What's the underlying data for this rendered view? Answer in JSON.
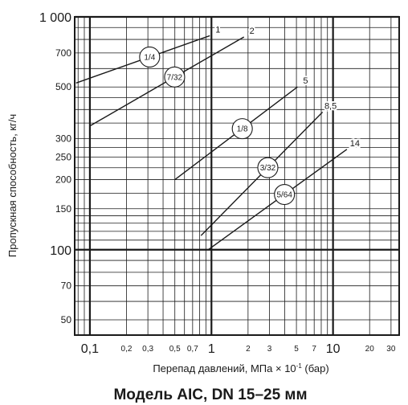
{
  "chart_data": {
    "type": "line",
    "title": "Модель AIC, DN 15–25 мм",
    "xlabel": "Перепад давлений, МПа × 10",
    "xlabel_sup": "-1",
    "xlabel_suffix": " (бар)",
    "ylabel": "Пропускная способность, кг/ч",
    "x_scale": "log",
    "y_scale": "log",
    "xlim": [
      0.075,
      35
    ],
    "ylim": [
      43,
      1000
    ],
    "x_ticks": [
      {
        "value": 0.1,
        "label": "0,1",
        "major": true
      },
      {
        "value": 0.2,
        "label": "0,2",
        "major": false
      },
      {
        "value": 0.3,
        "label": "0,3",
        "major": false
      },
      {
        "value": 0.5,
        "label": "0,5",
        "major": false
      },
      {
        "value": 0.7,
        "label": "0,7",
        "major": false
      },
      {
        "value": 1,
        "label": "1",
        "major": true
      },
      {
        "value": 2,
        "label": "2",
        "major": false
      },
      {
        "value": 3,
        "label": "3",
        "major": false
      },
      {
        "value": 5,
        "label": "5",
        "major": false
      },
      {
        "value": 7,
        "label": "7",
        "major": false
      },
      {
        "value": 10,
        "label": "10",
        "major": true
      },
      {
        "value": 20,
        "label": "20",
        "major": false
      },
      {
        "value": 30,
        "label": "30",
        "major": false
      }
    ],
    "y_ticks": [
      {
        "value": 1000,
        "label": "1 000",
        "major": true
      },
      {
        "value": 700,
        "label": "700",
        "major": false
      },
      {
        "value": 500,
        "label": "500",
        "major": false
      },
      {
        "value": 300,
        "label": "300",
        "major": false
      },
      {
        "value": 250,
        "label": "250",
        "major": false
      },
      {
        "value": 200,
        "label": "200",
        "major": false
      },
      {
        "value": 150,
        "label": "150",
        "major": false
      },
      {
        "value": 100,
        "label": "100",
        "major": true
      },
      {
        "value": 70,
        "label": "70",
        "major": false
      },
      {
        "value": 50,
        "label": "50",
        "major": false
      }
    ],
    "series": [
      {
        "name": "1",
        "orifice": "1/4",
        "x": [
          0.077,
          0.97
        ],
        "y": [
          520,
          830
        ]
      },
      {
        "name": "2",
        "orifice": "7/32",
        "x": [
          0.1,
          1.85
        ],
        "y": [
          340,
          820
        ]
      },
      {
        "name": "5",
        "orifice": "1/8",
        "x": [
          0.5,
          5.1
        ],
        "y": [
          200,
          500
        ]
      },
      {
        "name": "8,5",
        "orifice": "3/32",
        "x": [
          0.82,
          8.2
        ],
        "y": [
          115,
          390
        ]
      },
      {
        "name": "14",
        "orifice": "5/64",
        "x": [
          0.94,
          13.0
        ],
        "y": [
          100,
          270
        ]
      }
    ]
  }
}
